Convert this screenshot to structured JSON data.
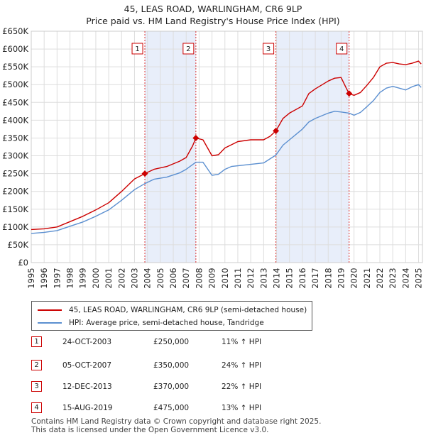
{
  "title_line1": "45, LEAS ROAD, WARLINGHAM, CR6 9LP",
  "title_line2": "Price paid vs. HM Land Registry's House Price Index (HPI)",
  "chart_data": {
    "type": "line",
    "title": "45, LEAS ROAD, WARLINGHAM, CR6 9LP — Price paid vs. HM Land Registry's House Price Index (HPI)",
    "x_range": [
      1995,
      2025.3
    ],
    "ylim": [
      0,
      650000
    ],
    "y_ticks": [
      0,
      50000,
      100000,
      150000,
      200000,
      250000,
      300000,
      350000,
      400000,
      450000,
      500000,
      550000,
      600000,
      650000
    ],
    "y_tick_labels": [
      "£0",
      "£50K",
      "£100K",
      "£150K",
      "£200K",
      "£250K",
      "£300K",
      "£350K",
      "£400K",
      "£450K",
      "£500K",
      "£550K",
      "£600K",
      "£650K"
    ],
    "x_ticks": [
      1995,
      1996,
      1997,
      1998,
      1999,
      2000,
      2001,
      2002,
      2003,
      2004,
      2005,
      2006,
      2007,
      2008,
      2009,
      2010,
      2011,
      2012,
      2013,
      2014,
      2015,
      2016,
      2017,
      2018,
      2019,
      2020,
      2021,
      2022,
      2023,
      2024,
      2025
    ],
    "grid": true,
    "legend_position": "below",
    "series": [
      {
        "name": "45, LEAS ROAD, WARLINGHAM, CR6 9LP (semi-detached house)",
        "color": "#cc0000",
        "points": [
          [
            1995.0,
            93000
          ],
          [
            1996.0,
            95000
          ],
          [
            1997.0,
            100000
          ],
          [
            1998.0,
            115000
          ],
          [
            1999.0,
            130000
          ],
          [
            2000.0,
            148000
          ],
          [
            2001.0,
            168000
          ],
          [
            2002.0,
            200000
          ],
          [
            2003.0,
            235000
          ],
          [
            2003.8,
            250000
          ],
          [
            2004.5,
            262000
          ],
          [
            2005.5,
            270000
          ],
          [
            2006.5,
            285000
          ],
          [
            2007.0,
            295000
          ],
          [
            2007.5,
            328000
          ],
          [
            2007.75,
            350000
          ],
          [
            2008.3,
            345000
          ],
          [
            2009.0,
            300000
          ],
          [
            2009.5,
            303000
          ],
          [
            2010.0,
            322000
          ],
          [
            2010.5,
            331000
          ],
          [
            2011.0,
            340000
          ],
          [
            2012.0,
            345000
          ],
          [
            2013.0,
            345000
          ],
          [
            2013.5,
            355000
          ],
          [
            2013.95,
            370000
          ],
          [
            2014.5,
            405000
          ],
          [
            2015.0,
            420000
          ],
          [
            2016.0,
            440000
          ],
          [
            2016.5,
            475000
          ],
          [
            2017.0,
            488000
          ],
          [
            2018.0,
            510000
          ],
          [
            2018.5,
            518000
          ],
          [
            2019.0,
            520000
          ],
          [
            2019.4,
            490000
          ],
          [
            2019.62,
            475000
          ],
          [
            2020.0,
            470000
          ],
          [
            2020.5,
            478000
          ],
          [
            2021.0,
            498000
          ],
          [
            2021.5,
            520000
          ],
          [
            2022.0,
            550000
          ],
          [
            2022.5,
            560000
          ],
          [
            2023.0,
            562000
          ],
          [
            2023.5,
            558000
          ],
          [
            2024.0,
            556000
          ],
          [
            2024.5,
            560000
          ],
          [
            2025.0,
            566000
          ],
          [
            2025.2,
            558000
          ]
        ]
      },
      {
        "name": "HPI: Average price, semi-detached house, Tandridge",
        "color": "#5b8fd0",
        "points": [
          [
            1995.0,
            82000
          ],
          [
            1996.0,
            85000
          ],
          [
            1997.0,
            90000
          ],
          [
            1998.0,
            102000
          ],
          [
            1999.0,
            114000
          ],
          [
            2000.0,
            130000
          ],
          [
            2001.0,
            148000
          ],
          [
            2002.0,
            175000
          ],
          [
            2003.0,
            205000
          ],
          [
            2003.8,
            222000
          ],
          [
            2004.5,
            234000
          ],
          [
            2005.5,
            240000
          ],
          [
            2006.5,
            252000
          ],
          [
            2007.0,
            262000
          ],
          [
            2007.75,
            282000
          ],
          [
            2008.3,
            282000
          ],
          [
            2009.0,
            245000
          ],
          [
            2009.5,
            248000
          ],
          [
            2010.0,
            262000
          ],
          [
            2010.5,
            270000
          ],
          [
            2011.0,
            272000
          ],
          [
            2012.0,
            276000
          ],
          [
            2013.0,
            280000
          ],
          [
            2013.95,
            302000
          ],
          [
            2014.5,
            330000
          ],
          [
            2015.0,
            345000
          ],
          [
            2016.0,
            375000
          ],
          [
            2016.5,
            395000
          ],
          [
            2017.0,
            405000
          ],
          [
            2018.0,
            420000
          ],
          [
            2018.5,
            425000
          ],
          [
            2019.0,
            423000
          ],
          [
            2019.62,
            420000
          ],
          [
            2020.0,
            414000
          ],
          [
            2020.5,
            422000
          ],
          [
            2021.0,
            438000
          ],
          [
            2021.5,
            455000
          ],
          [
            2022.0,
            478000
          ],
          [
            2022.5,
            490000
          ],
          [
            2023.0,
            495000
          ],
          [
            2023.5,
            490000
          ],
          [
            2024.0,
            485000
          ],
          [
            2024.5,
            494000
          ],
          [
            2025.0,
            500000
          ],
          [
            2025.2,
            492000
          ]
        ]
      }
    ],
    "shaded_ranges": [
      [
        2003.8,
        2007.75
      ],
      [
        2013.95,
        2019.62
      ]
    ],
    "sales": [
      {
        "num": "1",
        "x": 2003.8,
        "price": 250000
      },
      {
        "num": "2",
        "x": 2007.75,
        "price": 350000
      },
      {
        "num": "3",
        "x": 2013.95,
        "price": 370000
      },
      {
        "num": "4",
        "x": 2019.62,
        "price": 475000
      }
    ]
  },
  "legend": {
    "red_label": "45, LEAS ROAD, WARLINGHAM, CR6 9LP (semi-detached house)",
    "blue_label": "HPI: Average price, semi-detached house, Tandridge",
    "red_color": "#cc0000",
    "blue_color": "#5b8fd0"
  },
  "sales_table": [
    {
      "num": "1",
      "date": "24-OCT-2003",
      "price": "£250,000",
      "hpi": "11% ↑ HPI"
    },
    {
      "num": "2",
      "date": "05-OCT-2007",
      "price": "£350,000",
      "hpi": "24% ↑ HPI"
    },
    {
      "num": "3",
      "date": "12-DEC-2013",
      "price": "£370,000",
      "hpi": "22% ↑ HPI"
    },
    {
      "num": "4",
      "date": "15-AUG-2019",
      "price": "£475,000",
      "hpi": "13% ↑ HPI"
    }
  ],
  "footer": {
    "line1": "Contains HM Land Registry data © Crown copyright and database right 2025.",
    "line2": "This data is licensed under the Open Government Licence v3.0."
  }
}
